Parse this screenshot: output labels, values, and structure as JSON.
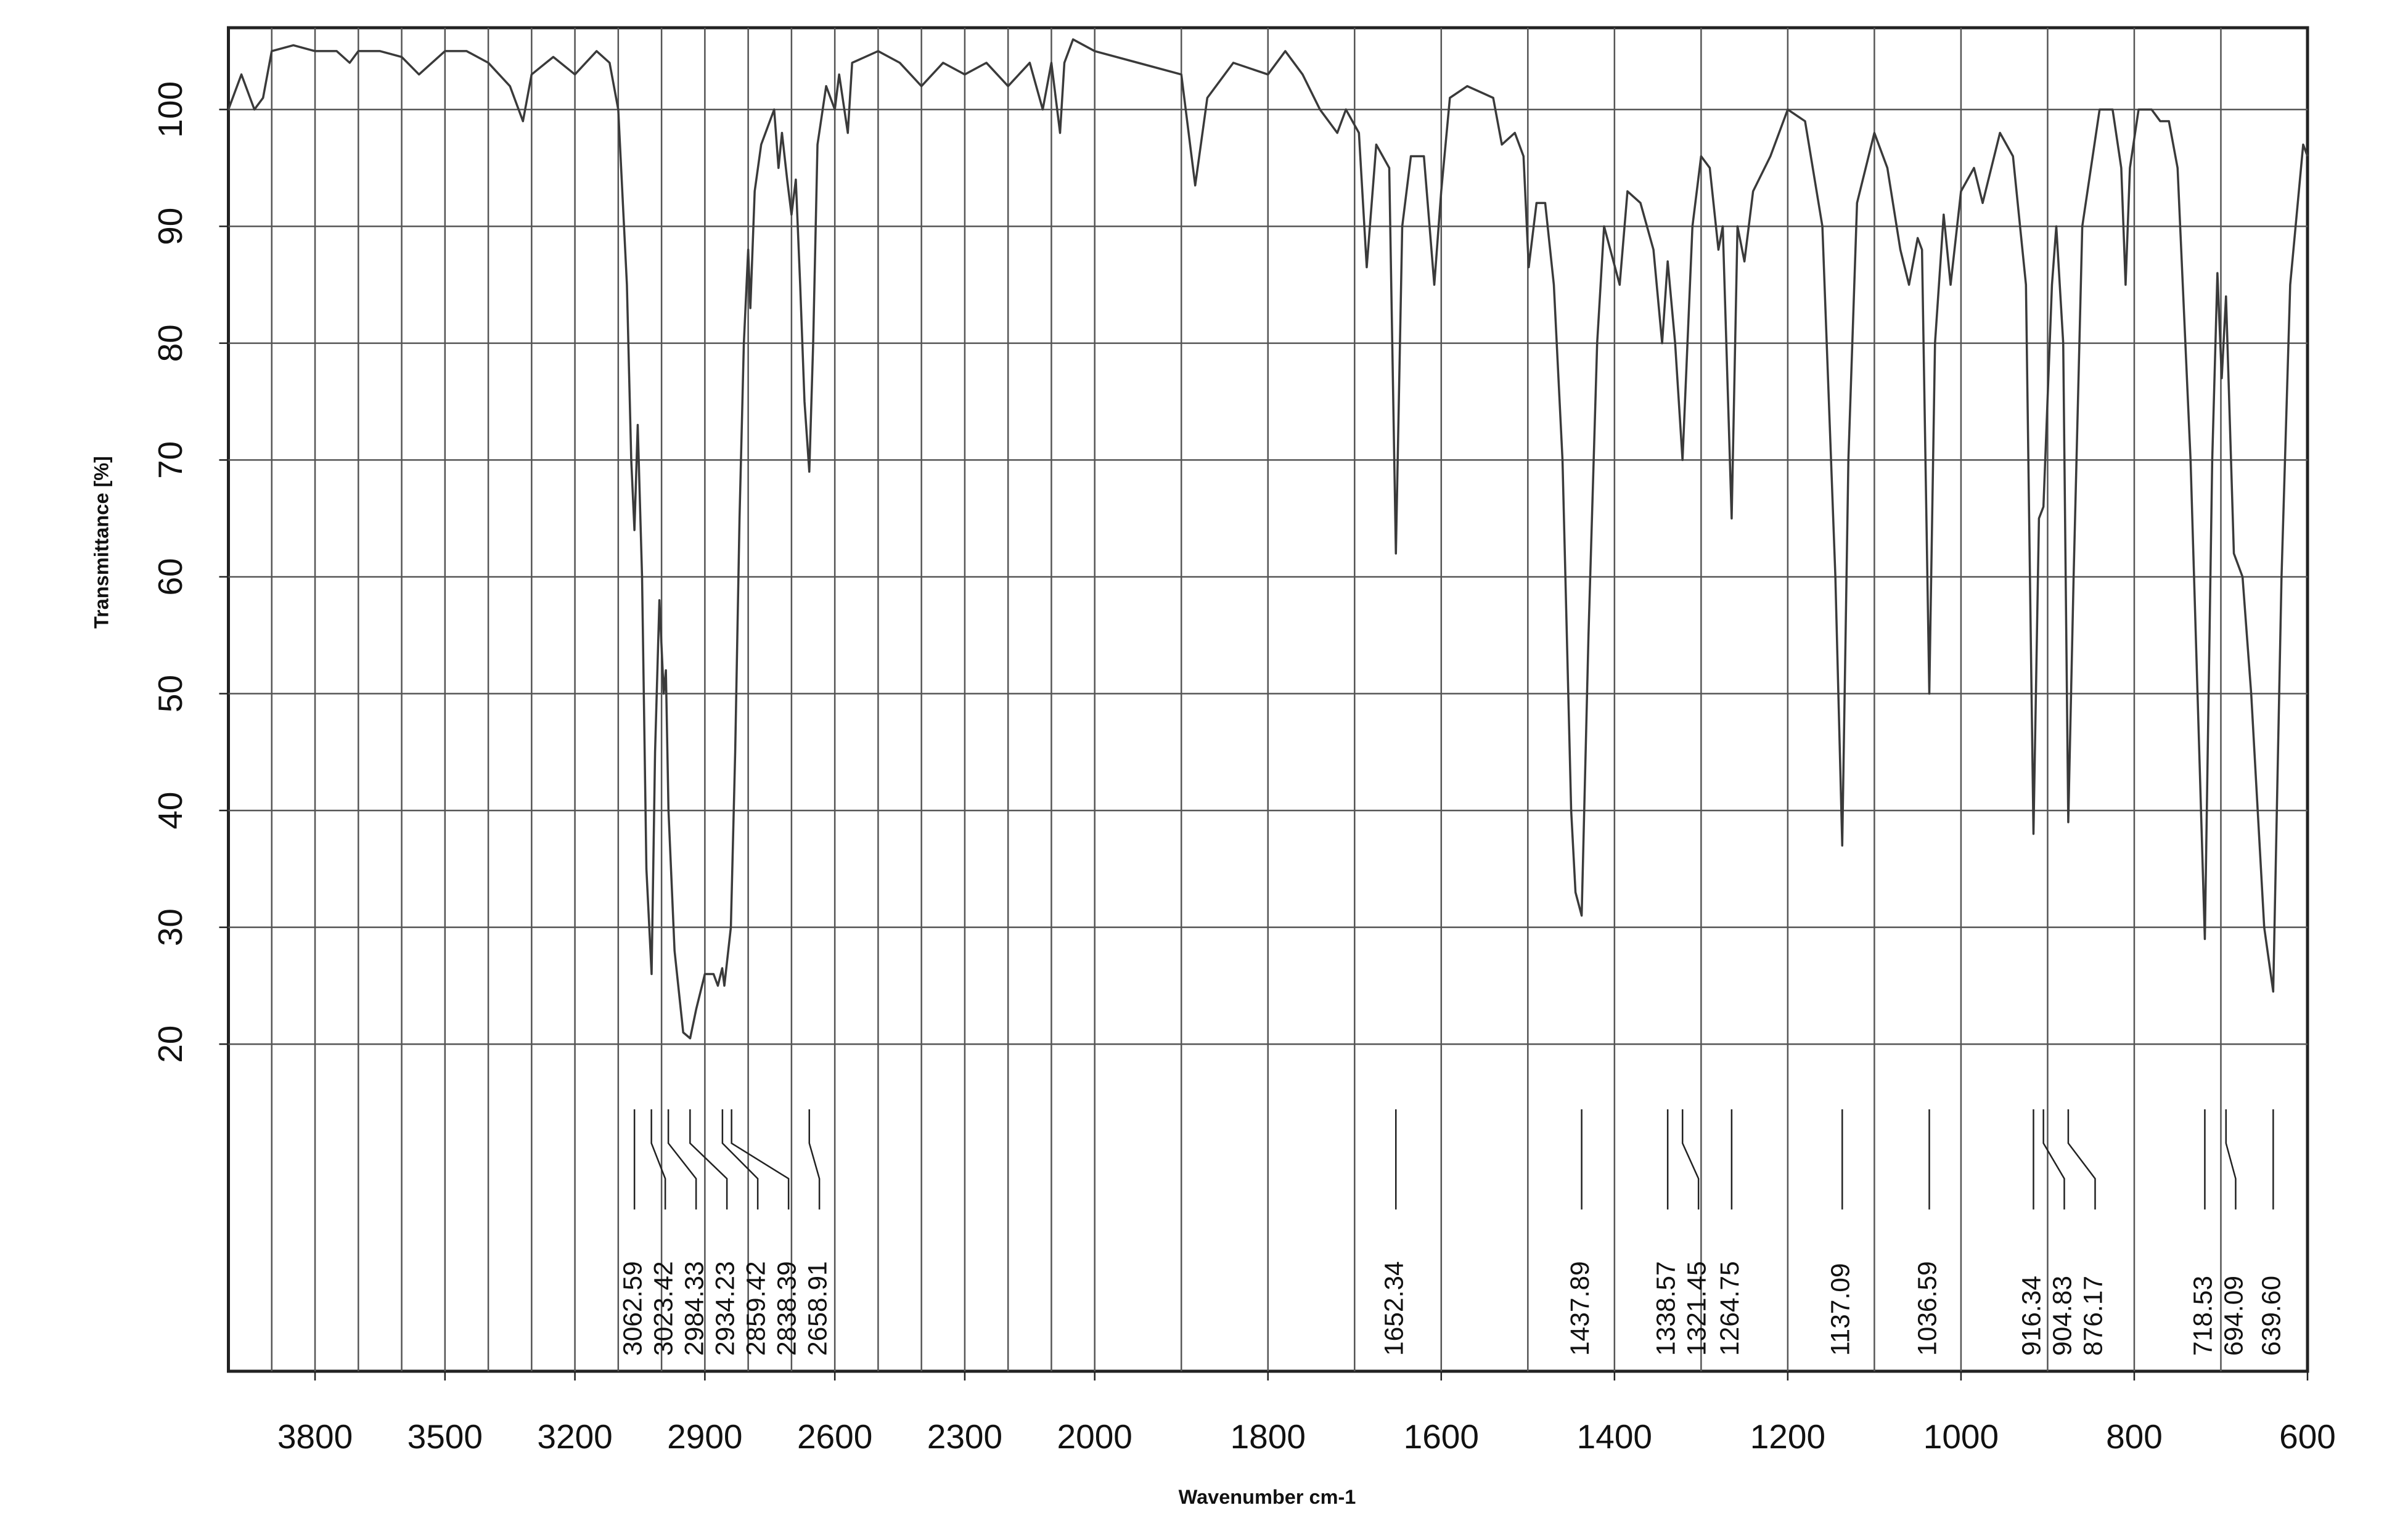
{
  "chart_data": {
    "type": "line",
    "xlabel": "Wavenumber cm-1",
    "ylabel": "Transmittance [%]",
    "xlim": [
      4000,
      600
    ],
    "xscale": "piecewise",
    "xbreak": 2000,
    "xticks": [
      3800,
      3500,
      3200,
      2900,
      2600,
      2300,
      2000,
      1800,
      1600,
      1400,
      1200,
      1000,
      800,
      600
    ],
    "xgrid": [
      3900,
      3800,
      3700,
      3600,
      3500,
      3400,
      3300,
      3200,
      3100,
      3000,
      2900,
      2800,
      2700,
      2600,
      2500,
      2400,
      2300,
      2200,
      2100,
      2000,
      1900,
      1800,
      1700,
      1600,
      1500,
      1400,
      1300,
      1200,
      1100,
      1000,
      900,
      800,
      700
    ],
    "ylim": [
      -8,
      107
    ],
    "yticks": [
      20,
      30,
      40,
      50,
      60,
      70,
      80,
      90,
      100
    ],
    "grid": true,
    "color": "#3a3a3a",
    "x": [
      4000,
      3990,
      3970,
      3940,
      3920,
      3900,
      3850,
      3800,
      3750,
      3720,
      3700,
      3650,
      3600,
      3560,
      3500,
      3450,
      3400,
      3350,
      3320,
      3300,
      3250,
      3200,
      3150,
      3120,
      3100,
      3080,
      3070,
      3062.59,
      3055,
      3045,
      3035,
      3023,
      3015,
      3005,
      2995,
      2990,
      2984,
      2970,
      2950,
      2934,
      2920,
      2900,
      2880,
      2870,
      2860,
      2855,
      2840,
      2830,
      2820,
      2810,
      2800,
      2795,
      2785,
      2770,
      2750,
      2740,
      2730,
      2722,
      2710,
      2700,
      2690,
      2680,
      2670,
      2658.91,
      2650,
      2640,
      2620,
      2600,
      2590,
      2570,
      2560,
      2500,
      2450,
      2400,
      2350,
      2300,
      2250,
      2200,
      2150,
      2120,
      2100,
      2080,
      2070,
      2050,
      2000,
      1950,
      1900,
      1884,
      1870,
      1840,
      1800,
      1780,
      1760,
      1740,
      1720,
      1710,
      1695,
      1686,
      1675,
      1660,
      1652.34,
      1645,
      1635,
      1620,
      1608,
      1600,
      1590,
      1570,
      1540,
      1530,
      1515,
      1505,
      1499,
      1490,
      1480,
      1470,
      1460,
      1450,
      1445,
      1437.89,
      1430,
      1420,
      1412,
      1394,
      1385,
      1370,
      1355,
      1345,
      1338.57,
      1330,
      1321.45,
      1310,
      1300,
      1290,
      1280,
      1275,
      1264.75,
      1258,
      1250,
      1240,
      1220,
      1200,
      1180,
      1160,
      1145,
      1137.09,
      1130,
      1120,
      1100,
      1085,
      1070,
      1060,
      1050,
      1045,
      1036.59,
      1030,
      1020,
      1012,
      1000,
      985,
      975,
      965,
      955,
      940,
      925,
      916.34,
      910,
      904.83,
      895,
      890,
      882,
      876.17,
      870,
      860,
      840,
      825,
      815,
      810,
      805,
      795,
      780,
      770,
      760,
      750,
      735,
      718.53,
      710,
      704,
      699,
      694.09,
      685,
      675,
      665,
      650,
      639.6,
      630,
      620,
      605,
      600
    ],
    "values": [
      100,
      101,
      103,
      100,
      101,
      105,
      105.5,
      105,
      105,
      104,
      105,
      105,
      104.5,
      103,
      105,
      105,
      104,
      102,
      99,
      103,
      104.5,
      103,
      105,
      104,
      100,
      85,
      70,
      64,
      73,
      60,
      35,
      26,
      45,
      58,
      50,
      52,
      40,
      28,
      21,
      20.5,
      23,
      26,
      26,
      25,
      26.5,
      25,
      30,
      45,
      65,
      80,
      88,
      83,
      93,
      97,
      99,
      100,
      95,
      98,
      94,
      91,
      94,
      85,
      75,
      69,
      80,
      97,
      102,
      100,
      103,
      98,
      104,
      105,
      104,
      102,
      104,
      103,
      104,
      102,
      104,
      100,
      104,
      98,
      104,
      106,
      105,
      104,
      103,
      93.5,
      101,
      104,
      103,
      105,
      103,
      100,
      98,
      100,
      98,
      86.5,
      97,
      95,
      62,
      90,
      96,
      96,
      85,
      93,
      101,
      102,
      101,
      97,
      98,
      96,
      86.5,
      92,
      92,
      85,
      70,
      40,
      33,
      31,
      55,
      80,
      90,
      85,
      93,
      92,
      88,
      80,
      87,
      80,
      70,
      90,
      96,
      95,
      88,
      90,
      65,
      90,
      87,
      93,
      96,
      100,
      99,
      90,
      60,
      37,
      70,
      92,
      98,
      95,
      88,
      85,
      89,
      88,
      50,
      80,
      91,
      85,
      93,
      95,
      92,
      95,
      98,
      96,
      85,
      38,
      65,
      66,
      85,
      90,
      80,
      39,
      60,
      90,
      100,
      100,
      95,
      85,
      95,
      100,
      100,
      99,
      99,
      95,
      70,
      29,
      70,
      86,
      77,
      84,
      62,
      60,
      50,
      30,
      24.5,
      60,
      85,
      97,
      96
    ],
    "peaks": [
      3062.59,
      3023.42,
      2984.33,
      2934.23,
      2859.42,
      2838.39,
      2658.91,
      1652.34,
      1437.89,
      1338.57,
      1321.45,
      1264.75,
      1137.09,
      1036.59,
      916.34,
      904.83,
      876.17,
      718.53,
      694.09,
      {
        "value": 639.6,
        "label": "639.60"
      }
    ]
  }
}
